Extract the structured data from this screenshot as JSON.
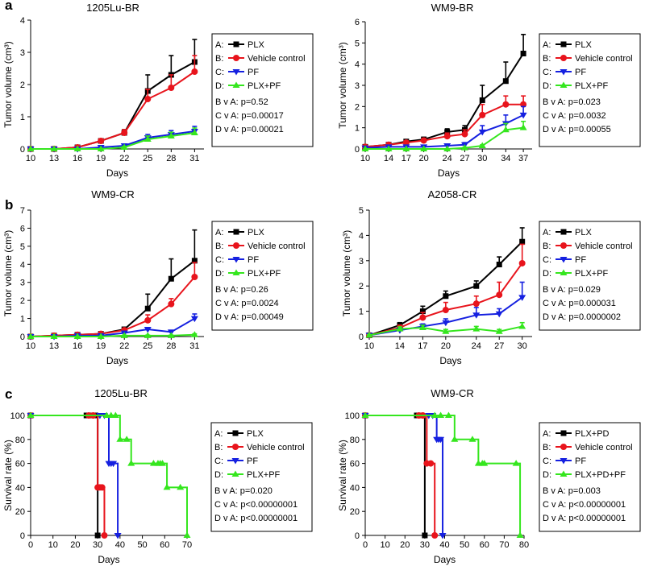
{
  "panel_letters": [
    "a",
    "b",
    "c"
  ],
  "legend_marker_prefixes": [
    "A:",
    "B:",
    "C:",
    "D:"
  ],
  "colors": {
    "A": "#000000",
    "B": "#e8141c",
    "C": "#1520e0",
    "D": "#35e61e"
  },
  "chart_data": [
    {
      "type": "line",
      "panel_letter": "a",
      "title": "1205Lu-BR",
      "xlabel": "Days",
      "ylabel": "Tumor volume (cm³)",
      "x": [
        10,
        13,
        16,
        19,
        22,
        25,
        28,
        31
      ],
      "xlim": [
        10,
        32.2
      ],
      "ylim": [
        0,
        4
      ],
      "x_ticks": [
        10,
        13,
        16,
        19,
        22,
        25,
        28,
        31
      ],
      "y_ticks": [
        0,
        1,
        2,
        3,
        4
      ],
      "series": [
        {
          "name": "PLX",
          "key": "A",
          "values": [
            0,
            0,
            0.05,
            0.25,
            0.5,
            1.8,
            2.3,
            2.7
          ],
          "errors": [
            0,
            0,
            0.03,
            0.06,
            0.1,
            0.5,
            0.6,
            0.7
          ]
        },
        {
          "name": "Vehicle control",
          "key": "B",
          "values": [
            0,
            0,
            0.05,
            0.25,
            0.5,
            1.55,
            1.9,
            2.4
          ],
          "errors": [
            0,
            0,
            0.03,
            0.06,
            0.1,
            0.3,
            0.4,
            0.5
          ]
        },
        {
          "name": "PF",
          "key": "C",
          "values": [
            0,
            0,
            0,
            0.05,
            0.1,
            0.35,
            0.45,
            0.55
          ],
          "errors": [
            0,
            0,
            0,
            0.03,
            0.04,
            0.1,
            0.12,
            0.15
          ]
        },
        {
          "name": "PLX+PF",
          "key": "D",
          "values": [
            0,
            0,
            0,
            0,
            0.05,
            0.3,
            0.4,
            0.5
          ],
          "errors": [
            0,
            0,
            0,
            0,
            0.03,
            0.1,
            0.12,
            0.15
          ]
        }
      ],
      "legend": [
        "PLX",
        "Vehicle control",
        "PF",
        "PLX+PF"
      ],
      "stats": [
        "B v A: p=0.52",
        "C v A: p=0.00017",
        "D v A: p=0.00021"
      ]
    },
    {
      "type": "line",
      "panel_letter": "",
      "title": "WM9-BR",
      "xlabel": "Days",
      "ylabel": "Tumor volume (cm³)",
      "x": [
        10,
        14,
        17,
        20,
        24,
        27,
        30,
        34,
        37
      ],
      "xlim": [
        10,
        38.5
      ],
      "ylim": [
        0,
        6
      ],
      "x_ticks": [
        10,
        14,
        17,
        20,
        24,
        27,
        30,
        34,
        37
      ],
      "y_ticks": [
        0,
        1,
        2,
        3,
        4,
        5,
        6
      ],
      "series": [
        {
          "name": "PLX",
          "key": "A",
          "values": [
            0.1,
            0.2,
            0.35,
            0.45,
            0.8,
            0.9,
            2.3,
            3.2,
            4.5
          ],
          "errors": [
            0.03,
            0.05,
            0.08,
            0.1,
            0.15,
            0.2,
            0.7,
            0.9,
            0.9
          ]
        },
        {
          "name": "Vehicle control",
          "key": "B",
          "values": [
            0.1,
            0.2,
            0.3,
            0.4,
            0.6,
            0.7,
            1.6,
            2.1,
            2.1
          ],
          "errors": [
            0.03,
            0.05,
            0.08,
            0.1,
            0.15,
            0.2,
            0.5,
            0.4,
            0.4
          ]
        },
        {
          "name": "PF",
          "key": "C",
          "values": [
            0.05,
            0.1,
            0.1,
            0.1,
            0.15,
            0.2,
            0.8,
            1.2,
            1.6
          ],
          "errors": [
            0.03,
            0.04,
            0.05,
            0.05,
            0.06,
            0.1,
            0.3,
            0.4,
            0.4
          ]
        },
        {
          "name": "PLX+PF",
          "key": "D",
          "values": [
            0,
            0,
            0,
            0,
            0,
            0.05,
            0.15,
            0.9,
            1.0
          ],
          "errors": [
            0,
            0,
            0,
            0,
            0,
            0.03,
            0.05,
            0.3,
            0.3
          ]
        }
      ],
      "legend": [
        "PLX",
        "Vehicle control",
        "PF",
        "PLX+PF"
      ],
      "stats": [
        "B v A: p=0.023",
        "C v A: p=0.0032",
        "D v A: p=0.00055"
      ]
    },
    {
      "type": "line",
      "panel_letter": "b",
      "title": "WM9-CR",
      "xlabel": "Days",
      "ylabel": "Tumor volume (cm³)",
      "x": [
        10,
        13,
        16,
        19,
        22,
        25,
        28,
        31
      ],
      "xlim": [
        10,
        32.2
      ],
      "ylim": [
        0,
        7
      ],
      "x_ticks": [
        10,
        13,
        16,
        19,
        22,
        25,
        28,
        31
      ],
      "y_ticks": [
        0,
        1,
        2,
        3,
        4,
        5,
        6,
        7
      ],
      "series": [
        {
          "name": "PLX",
          "key": "A",
          "values": [
            0,
            0.05,
            0.1,
            0.15,
            0.4,
            1.55,
            3.2,
            4.2
          ],
          "errors": [
            0,
            0.03,
            0.04,
            0.05,
            0.1,
            0.8,
            1.1,
            1.7
          ]
        },
        {
          "name": "Vehicle control",
          "key": "B",
          "values": [
            0,
            0.05,
            0.1,
            0.15,
            0.35,
            0.9,
            1.8,
            3.3
          ],
          "errors": [
            0,
            0.03,
            0.04,
            0.05,
            0.1,
            0.3,
            0.3,
            0.8
          ]
        },
        {
          "name": "PF",
          "key": "C",
          "values": [
            0,
            0,
            0.05,
            0.05,
            0.2,
            0.4,
            0.25,
            1.0
          ],
          "errors": [
            0,
            0,
            0.03,
            0.03,
            0.05,
            0.1,
            0.1,
            0.25
          ]
        },
        {
          "name": "PLX+PF",
          "key": "D",
          "values": [
            0,
            0,
            0,
            0,
            0.05,
            0.05,
            0.05,
            0.1
          ],
          "errors": [
            0,
            0,
            0,
            0,
            0.03,
            0.03,
            0.03,
            0.05
          ]
        }
      ],
      "legend": [
        "PLX",
        "Vehicle control",
        "PF",
        "PLX+PF"
      ],
      "stats": [
        "B v A: p=0.26",
        "C v A: p=0.0024",
        "D v A: p=0.00049"
      ]
    },
    {
      "type": "line",
      "panel_letter": "",
      "title": "A2058-CR",
      "xlabel": "Days",
      "ylabel": "Tumor volume (cm³)",
      "x": [
        10,
        14,
        17,
        20,
        24,
        27,
        30
      ],
      "xlim": [
        10,
        31.3
      ],
      "ylim": [
        0,
        5
      ],
      "x_ticks": [
        10,
        14,
        17,
        20,
        24,
        27,
        30
      ],
      "y_ticks": [
        0,
        1,
        2,
        3,
        4,
        5
      ],
      "series": [
        {
          "name": "PLX",
          "key": "A",
          "values": [
            0.05,
            0.45,
            1.0,
            1.6,
            2.0,
            2.85,
            3.75
          ],
          "errors": [
            0.03,
            0.1,
            0.2,
            0.2,
            0.2,
            0.3,
            0.55
          ]
        },
        {
          "name": "Vehicle control",
          "key": "B",
          "values": [
            0.05,
            0.35,
            0.75,
            1.05,
            1.3,
            1.65,
            2.9
          ],
          "errors": [
            0.03,
            0.1,
            0.2,
            0.3,
            0.3,
            0.5,
            0.75
          ]
        },
        {
          "name": "PF",
          "key": "C",
          "values": [
            0.05,
            0.25,
            0.4,
            0.55,
            0.85,
            0.9,
            1.55
          ],
          "errors": [
            0.03,
            0.08,
            0.1,
            0.15,
            0.3,
            0.2,
            0.6
          ]
        },
        {
          "name": "PLX+PF",
          "key": "D",
          "values": [
            0.05,
            0.3,
            0.35,
            0.2,
            0.3,
            0.2,
            0.4
          ],
          "errors": [
            0.03,
            0.08,
            0.1,
            0.08,
            0.1,
            0.08,
            0.15
          ]
        }
      ],
      "legend": [
        "PLX",
        "Vehicle control",
        "PF",
        "PLX+PF"
      ],
      "stats": [
        "B v A: p=0.029",
        "C v A: p=0.000031",
        "D v A: p=0.0000002"
      ]
    },
    {
      "type": "step",
      "panel_letter": "c",
      "title": "1205Lu-BR",
      "xlabel": "Days",
      "ylabel": "Survival rate (%)",
      "xlim": [
        0,
        70
      ],
      "ylim": [
        0,
        100
      ],
      "x_ticks": [
        0,
        10,
        20,
        30,
        40,
        50,
        60,
        70
      ],
      "y_ticks": [
        0,
        20,
        40,
        60,
        80,
        100
      ],
      "series": [
        {
          "name": "PLX",
          "key": "A",
          "points": [
            [
              0,
              100
            ],
            [
              25,
              100
            ],
            [
              27,
              100
            ],
            [
              29,
              100
            ],
            [
              30,
              0
            ]
          ]
        },
        {
          "name": "Vehicle control",
          "key": "B",
          "points": [
            [
              0,
              100
            ],
            [
              26,
              100
            ],
            [
              28,
              100
            ],
            [
              30,
              40
            ],
            [
              31,
              40
            ],
            [
              32,
              40
            ],
            [
              33,
              0
            ]
          ]
        },
        {
          "name": "PF",
          "key": "C",
          "points": [
            [
              0,
              100
            ],
            [
              31,
              100
            ],
            [
              33,
              100
            ],
            [
              35,
              60
            ],
            [
              36,
              60
            ],
            [
              37,
              60
            ],
            [
              39,
              0
            ]
          ]
        },
        {
          "name": "PLX+PF",
          "key": "D",
          "points": [
            [
              0,
              100
            ],
            [
              34,
              100
            ],
            [
              36,
              100
            ],
            [
              38,
              100
            ],
            [
              40,
              80
            ],
            [
              43,
              80
            ],
            [
              45,
              60
            ],
            [
              55,
              60
            ],
            [
              57,
              60
            ],
            [
              58,
              60
            ],
            [
              59,
              60
            ],
            [
              61,
              40
            ],
            [
              67,
              40
            ],
            [
              70,
              0
            ]
          ]
        }
      ],
      "legend": [
        "PLX",
        "Vehicle control",
        "PF",
        "PLX+PF"
      ],
      "stats": [
        "B v A: p=0.020",
        "C v A: p<0.00000001",
        "D v A: p<0.00000001"
      ]
    },
    {
      "type": "step",
      "panel_letter": "",
      "title": "WM9-CR",
      "xlabel": "Days",
      "ylabel": "Survival rate (%)",
      "xlim": [
        0,
        80
      ],
      "ylim": [
        0,
        100
      ],
      "x_ticks": [
        0,
        10,
        20,
        30,
        40,
        50,
        60,
        70,
        80
      ],
      "y_ticks": [
        0,
        20,
        40,
        60,
        80,
        100
      ],
      "series": [
        {
          "name": "PLX+PD",
          "key": "A",
          "points": [
            [
              0,
              100
            ],
            [
              26,
              100
            ],
            [
              28,
              100
            ],
            [
              30,
              0
            ]
          ]
        },
        {
          "name": "Vehicle control",
          "key": "B",
          "points": [
            [
              0,
              100
            ],
            [
              27,
              100
            ],
            [
              29,
              100
            ],
            [
              31,
              60
            ],
            [
              33,
              60
            ],
            [
              35,
              0
            ]
          ]
        },
        {
          "name": "PF",
          "key": "C",
          "points": [
            [
              0,
              100
            ],
            [
              32,
              100
            ],
            [
              34,
              100
            ],
            [
              36,
              80
            ],
            [
              37,
              80
            ],
            [
              38,
              80
            ],
            [
              39,
              0
            ]
          ]
        },
        {
          "name": "PLX+PD+PF",
          "key": "D",
          "points": [
            [
              0,
              100
            ],
            [
              35,
              100
            ],
            [
              38,
              100
            ],
            [
              42,
              100
            ],
            [
              45,
              80
            ],
            [
              54,
              80
            ],
            [
              57,
              60
            ],
            [
              59,
              60
            ],
            [
              60,
              60
            ],
            [
              76,
              60
            ],
            [
              78,
              0
            ]
          ]
        }
      ],
      "legend": [
        "PLX+PD",
        "Vehicle control",
        "PF",
        "PLX+PD+PF"
      ],
      "stats": [
        "B v A: p=0.003",
        "C v A: p<0.00000001",
        "D v A: p<0.00000001"
      ]
    }
  ]
}
